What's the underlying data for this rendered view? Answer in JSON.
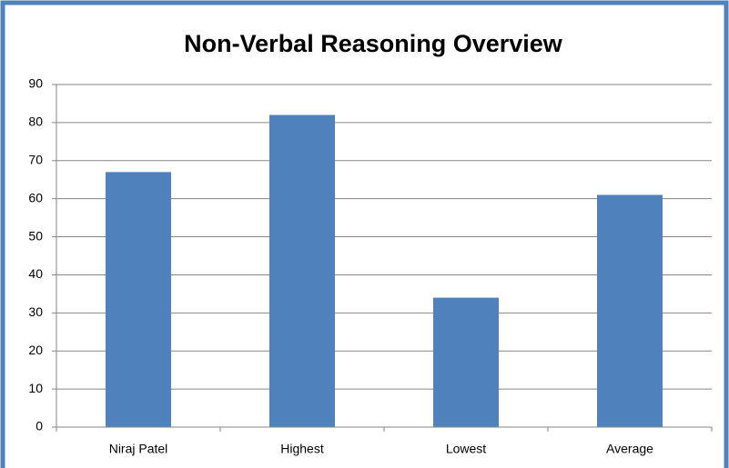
{
  "chart_data": {
    "type": "bar",
    "title": "Non-Verbal Reasoning Overview",
    "categories": [
      "Niraj Patel",
      "Highest",
      "Lowest",
      "Average"
    ],
    "values": [
      67,
      82,
      34,
      61
    ],
    "color": "#4f81bd",
    "ylim": [
      0,
      90
    ],
    "yticks": [
      0,
      10,
      20,
      30,
      40,
      50,
      60,
      70,
      80,
      90
    ],
    "grid": true
  }
}
